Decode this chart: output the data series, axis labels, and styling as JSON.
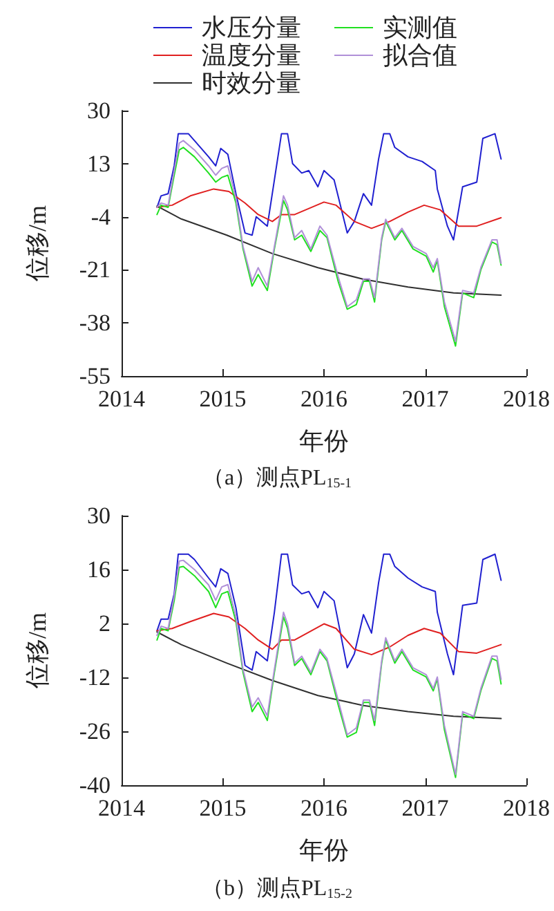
{
  "chart_data": [
    {
      "type": "line",
      "title": "（a）测点PL$_{15-1}$",
      "xlabel": "年份",
      "ylabel": "位移/m",
      "xlim": [
        2014,
        2018
      ],
      "xticks": [
        2014,
        2015,
        2016,
        2017,
        2018
      ],
      "ylim": [
        -55,
        30
      ],
      "yticks": [
        -55,
        -38,
        -21,
        -4,
        13,
        30
      ],
      "legend": "top",
      "marker": "none",
      "line_style": "solid",
      "series": [
        {
          "name": "水压分量",
          "color": "#2020d0",
          "x": [
            2014.35,
            2014.39,
            2014.46,
            2014.52,
            2014.56,
            2014.66,
            2014.72,
            2014.86,
            2014.93,
            2014.98,
            2015.05,
            2015.13,
            2015.22,
            2015.29,
            2015.33,
            2015.44,
            2015.51,
            2015.58,
            2015.64,
            2015.69,
            2015.78,
            2015.85,
            2015.94,
            2016.0,
            2016.1,
            2016.23,
            2016.3,
            2016.39,
            2016.47,
            2016.54,
            2016.59,
            2016.65,
            2016.7,
            2016.83,
            2016.97,
            2017.1,
            2017.12,
            2017.22,
            2017.28,
            2017.37,
            2017.51,
            2017.57,
            2017.69,
            2017.75
          ],
          "values": [
            -1,
            2.7,
            3.4,
            12.3,
            22.6,
            22.6,
            20.4,
            15.2,
            12.3,
            17.9,
            16,
            3.4,
            -9.2,
            -9.9,
            -4,
            -7,
            7.8,
            22.6,
            22.6,
            13,
            10,
            10.8,
            5.6,
            10.8,
            7.8,
            -9.2,
            -5.5,
            3.4,
            -0.3,
            14.5,
            22.6,
            22.6,
            18.2,
            15.2,
            13.7,
            10.8,
            4.9,
            -7,
            -11.4,
            5.6,
            7.1,
            21.1,
            22.6,
            14.5
          ]
        },
        {
          "name": "温度分量",
          "color": "#e02020",
          "x": [
            2014.35,
            2014.5,
            2014.68,
            2014.91,
            2015.06,
            2015.22,
            2015.35,
            2015.49,
            2015.58,
            2015.71,
            2016.0,
            2016.12,
            2016.3,
            2016.47,
            2016.65,
            2016.83,
            2016.99,
            2017.15,
            2017.33,
            2017.51,
            2017.75
          ],
          "values": [
            -1,
            -0.3,
            2.7,
            4.9,
            4.1,
            0.4,
            -3.3,
            -5.5,
            -3.3,
            -3.3,
            0.7,
            -0.3,
            -5.5,
            -7.7,
            -5.5,
            -2.5,
            -0.3,
            -1.8,
            -7,
            -7,
            -4.3
          ]
        },
        {
          "name": "时效分量",
          "color": "#303030",
          "x": [
            2014.35,
            2014.59,
            2015.04,
            2015.49,
            2015.94,
            2016.39,
            2016.83,
            2017.28,
            2017.75
          ],
          "values": [
            -0.6,
            -4.7,
            -9.9,
            -15.8,
            -20.3,
            -24,
            -26.5,
            -28.4,
            -29.1
          ]
        },
        {
          "name": "实测值",
          "color": "#20e020",
          "x": [
            2014.35,
            2014.39,
            2014.46,
            2014.52,
            2014.57,
            2014.61,
            2014.72,
            2014.86,
            2014.93,
            2014.99,
            2015.05,
            2015.13,
            2015.2,
            2015.29,
            2015.35,
            2015.44,
            2015.51,
            2015.6,
            2015.64,
            2015.71,
            2015.78,
            2015.87,
            2015.96,
            2016.03,
            2016.14,
            2016.23,
            2016.32,
            2016.39,
            2016.45,
            2016.5,
            2016.57,
            2016.61,
            2016.7,
            2016.77,
            2016.88,
            2017.01,
            2017.08,
            2017.12,
            2017.19,
            2017.3,
            2017.37,
            2017.48,
            2017.55,
            2017.66,
            2017.71,
            2017.75
          ],
          "values": [
            -3.3,
            -0.3,
            -1,
            9.3,
            17.4,
            18.2,
            15.2,
            10,
            7.1,
            8.6,
            9.3,
            0.4,
            -14.3,
            -26.2,
            -22.5,
            -27.6,
            -14.3,
            1.2,
            -1.8,
            -11.4,
            -9.9,
            -15.1,
            -8.4,
            -10.7,
            -24.7,
            -33.6,
            -32.1,
            -24.7,
            -24.7,
            -31.3,
            -11.4,
            -5.5,
            -11.4,
            -8.4,
            -14.3,
            -16.6,
            -21.7,
            -18,
            -32.8,
            -45.4,
            -28.4,
            -29.9,
            -21,
            -12.1,
            -12.9,
            -19.5
          ]
        },
        {
          "name": "拟合值",
          "color": "#b090d8",
          "x": [
            2014.35,
            2014.39,
            2014.46,
            2014.52,
            2014.57,
            2014.61,
            2014.72,
            2014.86,
            2014.93,
            2014.99,
            2015.05,
            2015.13,
            2015.2,
            2015.29,
            2015.35,
            2015.44,
            2015.51,
            2015.6,
            2015.64,
            2015.71,
            2015.78,
            2015.87,
            2015.96,
            2016.03,
            2016.14,
            2016.23,
            2016.32,
            2016.39,
            2016.45,
            2016.5,
            2016.57,
            2016.61,
            2016.7,
            2016.77,
            2016.88,
            2017.01,
            2017.08,
            2017.12,
            2017.19,
            2017.3,
            2017.37,
            2017.48,
            2017.55,
            2017.66,
            2017.71,
            2017.75
          ],
          "values": [
            -1,
            0.4,
            -0.3,
            10.8,
            19.6,
            20.4,
            17.4,
            12.3,
            9.3,
            11.5,
            12.3,
            1.9,
            -13.5,
            -24.7,
            -20.3,
            -26.2,
            -13.5,
            2.7,
            -0.3,
            -10.7,
            -8.4,
            -14.3,
            -7,
            -9.9,
            -23.2,
            -32.8,
            -30.6,
            -23.9,
            -23.9,
            -29.9,
            -10.7,
            -4.8,
            -10.7,
            -7.7,
            -13.5,
            -15.8,
            -20.3,
            -17.4,
            -31.3,
            -43.9,
            -27.6,
            -28.4,
            -20.3,
            -11.4,
            -11.4,
            -18.9
          ]
        }
      ]
    },
    {
      "type": "line",
      "title": "（b）测点PL$_{15-2}$",
      "xlabel": "年份",
      "ylabel": "位移/m",
      "xlim": [
        2014,
        2018
      ],
      "xticks": [
        2014,
        2015,
        2016,
        2017,
        2018
      ],
      "ylim": [
        -40,
        30
      ],
      "yticks": [
        -40,
        -26,
        -12,
        2,
        16,
        30
      ],
      "marker": "none",
      "line_style": "solid",
      "series": [
        {
          "color": "#2020d0",
          "x": [
            2014.35,
            2014.39,
            2014.46,
            2014.52,
            2014.56,
            2014.66,
            2014.72,
            2014.86,
            2014.93,
            2014.98,
            2015.05,
            2015.13,
            2015.22,
            2015.29,
            2015.33,
            2015.44,
            2015.51,
            2015.58,
            2015.64,
            2015.69,
            2015.78,
            2015.85,
            2015.94,
            2016.0,
            2016.1,
            2016.23,
            2016.3,
            2016.39,
            2016.47,
            2016.54,
            2016.59,
            2016.65,
            2016.7,
            2016.83,
            2016.97,
            2017.1,
            2017.12,
            2017.22,
            2017.28,
            2017.37,
            2017.51,
            2017.57,
            2017.69,
            2017.75
          ],
          "values": [
            0.1,
            3.1,
            3.1,
            9.7,
            20,
            20,
            18.6,
            13.8,
            11.5,
            16.2,
            15,
            6.1,
            -8.9,
            -10.1,
            -5.3,
            -7.7,
            4.9,
            20,
            20,
            12,
            9.7,
            10.3,
            6.1,
            10.3,
            7.9,
            -9.5,
            -5.9,
            4.3,
            -0.5,
            12.6,
            20,
            20,
            16.8,
            13.8,
            11.5,
            10.3,
            4.9,
            -5.9,
            -11.3,
            6.7,
            7.3,
            18.6,
            20,
            13.2
          ]
        },
        {
          "color": "#e02020",
          "x": [
            2014.35,
            2014.5,
            2014.68,
            2014.91,
            2015.06,
            2015.22,
            2015.35,
            2015.49,
            2015.58,
            2015.71,
            2016.0,
            2016.12,
            2016.3,
            2016.47,
            2016.65,
            2016.83,
            2016.99,
            2017.15,
            2017.33,
            2017.51,
            2017.75
          ],
          "values": [
            0.1,
            0.7,
            2.5,
            4.6,
            3.7,
            0.7,
            -2.3,
            -4.7,
            -2.3,
            -2.3,
            1.9,
            0.7,
            -4.7,
            -6.1,
            -4.1,
            -1.1,
            0.7,
            -0.5,
            -5.3,
            -5.7,
            -3.5
          ]
        },
        {
          "color": "#303030",
          "x": [
            2014.35,
            2014.59,
            2015.04,
            2015.49,
            2015.94,
            2016.39,
            2016.83,
            2017.28,
            2017.75
          ],
          "values": [
            -0.2,
            -3.5,
            -8.3,
            -12.8,
            -16.7,
            -19.3,
            -20.9,
            -22.1,
            -22.7
          ]
        },
        {
          "color": "#20e020",
          "x": [
            2014.35,
            2014.39,
            2014.46,
            2014.52,
            2014.57,
            2014.61,
            2014.72,
            2014.86,
            2014.93,
            2014.99,
            2015.05,
            2015.13,
            2015.2,
            2015.29,
            2015.35,
            2015.44,
            2015.51,
            2015.6,
            2015.64,
            2015.71,
            2015.78,
            2015.87,
            2015.96,
            2016.03,
            2016.14,
            2016.23,
            2016.32,
            2016.39,
            2016.45,
            2016.5,
            2016.57,
            2016.61,
            2016.7,
            2016.77,
            2016.88,
            2017.01,
            2017.08,
            2017.12,
            2017.19,
            2017.3,
            2017.37,
            2017.48,
            2017.55,
            2017.66,
            2017.71,
            2017.75
          ],
          "values": [
            -2.3,
            0.7,
            0.1,
            7.9,
            16.6,
            16.8,
            14.4,
            10.3,
            6.1,
            9.7,
            10.3,
            2.5,
            -10.7,
            -20.9,
            -18.5,
            -23.2,
            -10.7,
            3.7,
            0.7,
            -8.9,
            -7.1,
            -11.3,
            -5.3,
            -7.7,
            -19.1,
            -27.5,
            -26.3,
            -18.5,
            -18.5,
            -24.5,
            -8.3,
            -2.3,
            -8.3,
            -5.3,
            -10.1,
            -11.9,
            -15.5,
            -12.5,
            -25.6,
            -38,
            -21.5,
            -22.7,
            -15.5,
            -7.1,
            -7.7,
            -13.7
          ]
        },
        {
          "color": "#b090d8",
          "x": [
            2014.35,
            2014.39,
            2014.46,
            2014.52,
            2014.57,
            2014.61,
            2014.72,
            2014.86,
            2014.93,
            2014.99,
            2015.05,
            2015.13,
            2015.2,
            2015.29,
            2015.35,
            2015.44,
            2015.51,
            2015.6,
            2015.64,
            2015.71,
            2015.78,
            2015.87,
            2015.96,
            2016.03,
            2016.14,
            2016.23,
            2016.32,
            2016.39,
            2016.45,
            2016.5,
            2016.57,
            2016.61,
            2016.7,
            2016.77,
            2016.88,
            2017.01,
            2017.08,
            2017.12,
            2017.19,
            2017.3,
            2017.37,
            2017.48,
            2017.55,
            2017.66,
            2017.71,
            2017.75
          ],
          "values": [
            -1.1,
            1.3,
            0.7,
            9.1,
            18.2,
            18.4,
            16,
            12,
            8,
            11.5,
            12.1,
            3.7,
            -9.9,
            -19.7,
            -17.3,
            -22,
            -9.9,
            4.9,
            1.9,
            -8.3,
            -6.5,
            -10.7,
            -4.7,
            -7.1,
            -17.9,
            -26.9,
            -25.1,
            -17.9,
            -17.9,
            -23.2,
            -7.7,
            -1.7,
            -7.7,
            -4.7,
            -9.5,
            -11.3,
            -14.9,
            -11.9,
            -24.5,
            -37.2,
            -20.9,
            -22.1,
            -14.9,
            -6.5,
            -6.5,
            -12.5
          ]
        }
      ]
    }
  ]
}
